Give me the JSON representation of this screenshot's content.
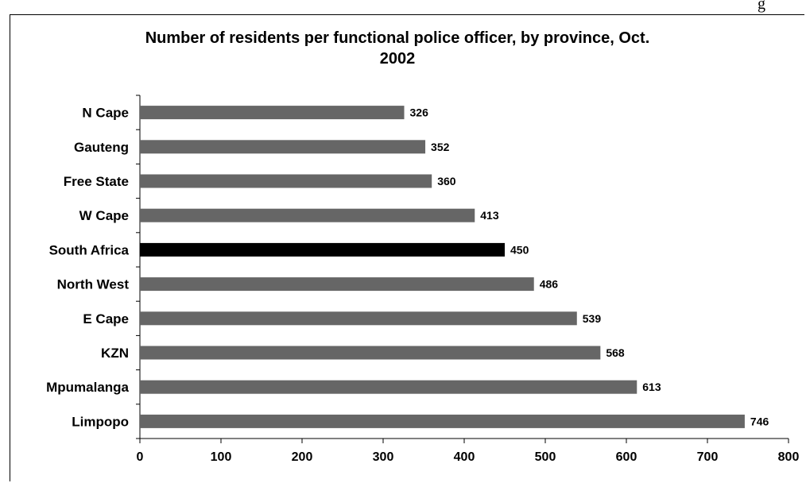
{
  "corner_text": "g",
  "chart_data": {
    "type": "bar",
    "orientation": "horizontal",
    "title": "Number of residents per functional police officer, by province, Oct. 2002",
    "title_lines": [
      "Number of residents per functional police officer, by province, Oct.",
      "2002"
    ],
    "categories": [
      "N Cape",
      "Gauteng",
      "Free State",
      "W Cape",
      "South Africa",
      "North West",
      "E Cape",
      "KZN",
      "Mpumalanga",
      "Limpopo"
    ],
    "values": [
      326,
      352,
      360,
      413,
      450,
      486,
      539,
      568,
      613,
      746
    ],
    "highlight_category": "South Africa",
    "xlim": [
      0,
      800
    ],
    "xticks": [
      0,
      100,
      200,
      300,
      400,
      500,
      600,
      700,
      800
    ],
    "xlabel": "",
    "ylabel": "",
    "grid": false,
    "legend": "none",
    "colors": {
      "bar": "#666666",
      "highlight": "#000000"
    }
  }
}
